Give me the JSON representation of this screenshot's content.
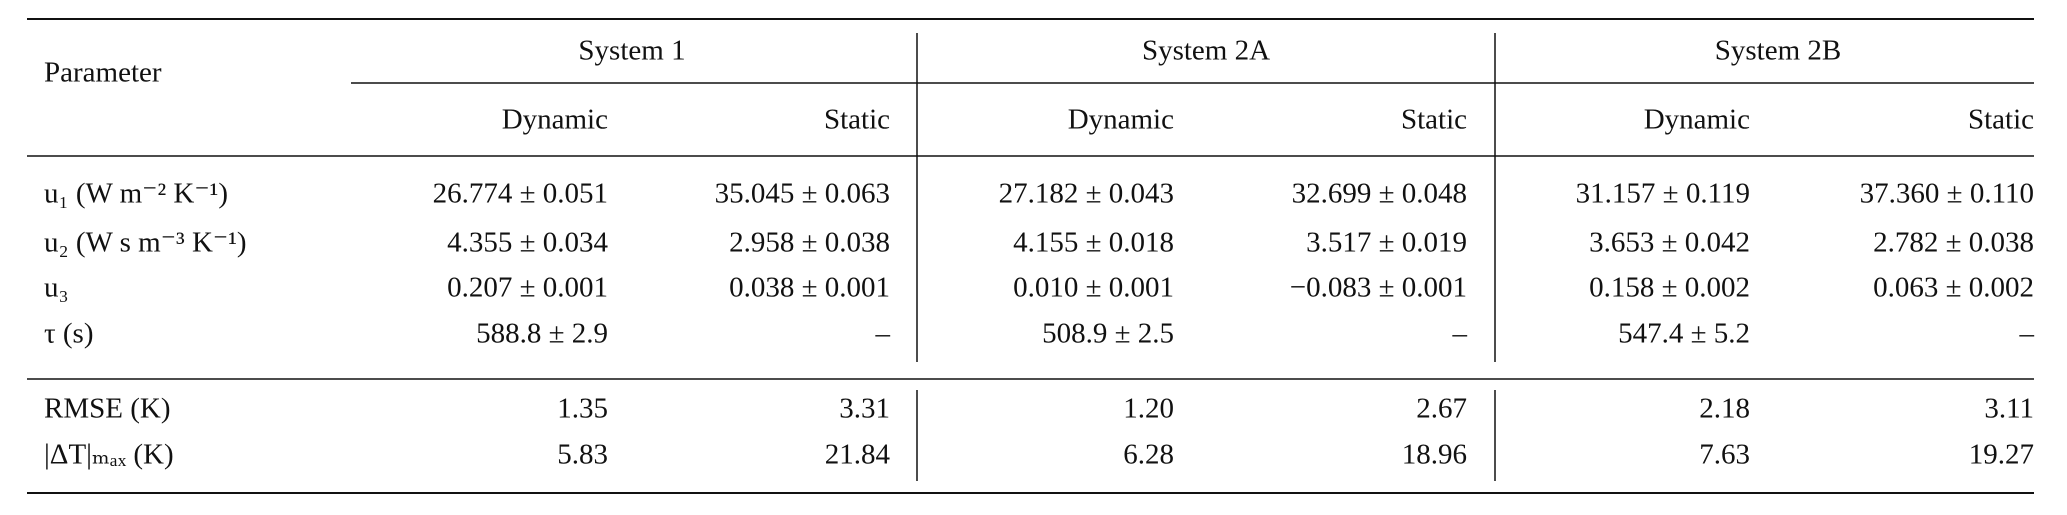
{
  "header": {
    "parameter": "Parameter",
    "groups": [
      "System 1",
      "System 2A",
      "System 2B"
    ],
    "subcolumns": [
      "Dynamic",
      "Static",
      "Dynamic",
      "Static",
      "Dynamic",
      "Static"
    ]
  },
  "table": {
    "sections": [
      {
        "rows": [
          {
            "label": "u₁ (W m⁻² K⁻¹)",
            "cells": [
              "26.774 ± 0.051",
              "35.045 ± 0.063",
              "27.182 ± 0.043",
              "32.699 ± 0.048",
              "31.157 ± 0.119",
              "37.360 ± 0.110"
            ]
          },
          {
            "label": "u₂ (W s m⁻³ K⁻¹)",
            "cells": [
              "4.355 ± 0.034",
              "2.958 ± 0.038",
              "4.155 ± 0.018",
              "3.517 ± 0.019",
              "3.653 ± 0.042",
              "2.782 ± 0.038"
            ]
          },
          {
            "label": "u₃",
            "cells": [
              "0.207 ± 0.001",
              "0.038 ± 0.001",
              "0.010 ± 0.001",
              "−0.083 ± 0.001",
              "0.158 ± 0.002",
              "0.063 ± 0.002"
            ]
          },
          {
            "label": "τ (s)",
            "cells": [
              "588.8 ± 2.9",
              "–",
              "508.9 ± 2.5",
              "–",
              "547.4 ± 5.2",
              "–"
            ]
          }
        ]
      },
      {
        "rows": [
          {
            "label": "RMSE (K)",
            "cells": [
              "1.35",
              "3.31",
              "1.20",
              "2.67",
              "2.18",
              "3.11"
            ]
          },
          {
            "label": "|ΔT|ₘₐₓ (K)",
            "cells": [
              "5.83",
              "21.84",
              "6.28",
              "18.96",
              "7.63",
              "19.27"
            ]
          }
        ]
      }
    ]
  }
}
